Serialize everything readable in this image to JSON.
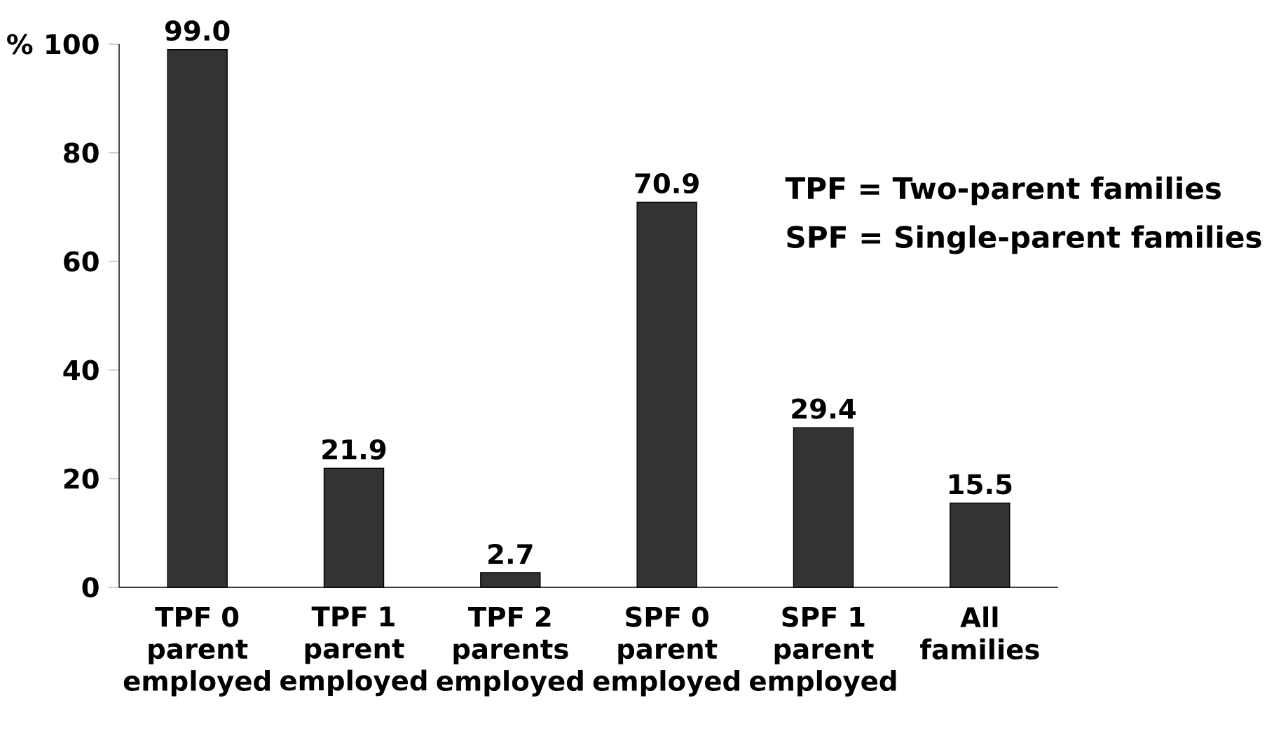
{
  "chart_data": {
    "type": "bar",
    "ylabel": "%",
    "categories": [
      "TPF 0 parent employed",
      "TPF 1 parent employed",
      "TPF 2 parents employed",
      "SPF 0 parent employed",
      "SPF 1 parent employed",
      "All families"
    ],
    "values": [
      99.0,
      21.9,
      2.7,
      70.9,
      29.4,
      15.5
    ],
    "color": "#333333",
    "ylim": [
      0,
      100
    ],
    "yticks": [
      0,
      20,
      40,
      60,
      80,
      100
    ],
    "value_labels": [
      "99.0",
      "21.9",
      "2.7",
      "70.9",
      "29.4",
      "15.5"
    ],
    "annotations": [
      "TPF = Two-parent families",
      "SPF = Single-parent families"
    ]
  }
}
